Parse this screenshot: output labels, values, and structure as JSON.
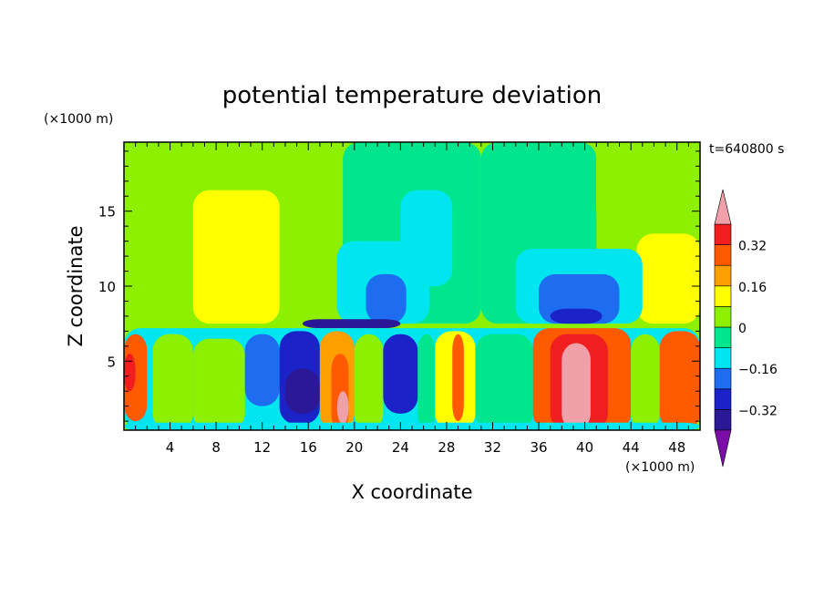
{
  "chart_data": {
    "type": "heatmap",
    "title": "potential temperature deviation",
    "xlabel": "X coordinate",
    "ylabel": "Z coordinate",
    "x_unit_label": "(×1000 m)",
    "y_unit_label": "(×1000 m)",
    "time_label": "t=640800 s",
    "xlim": [
      0,
      50
    ],
    "ylim": [
      0.4,
      19.6
    ],
    "x_ticks": [
      4,
      8,
      12,
      16,
      20,
      24,
      28,
      32,
      36,
      40,
      44,
      48
    ],
    "x_tick_labels": [
      "4",
      "8",
      "12",
      "16",
      "20",
      "24",
      "28",
      "32",
      "36",
      "40",
      "44",
      "48"
    ],
    "y_ticks": [
      5,
      10,
      15
    ],
    "y_tick_labels": [
      "5",
      "10",
      "15"
    ],
    "colorbar": {
      "levels": [
        -0.4,
        -0.32,
        -0.24,
        -0.16,
        -0.08,
        0,
        0.08,
        0.16,
        0.24,
        0.32,
        0.4
      ],
      "tick_labels": [
        "0.32",
        "0.16",
        "0",
        "−0.16",
        "−0.32"
      ],
      "tick_values": [
        0.32,
        0.16,
        0,
        -0.16,
        -0.32
      ],
      "colors": [
        "#7b0ea8",
        "#2a1896",
        "#1a22c8",
        "#1e6cf0",
        "#00e6f0",
        "#00e68c",
        "#8cf000",
        "#ffff00",
        "#ffa000",
        "#ff5a00",
        "#f01e1e",
        "#f0a0a8"
      ]
    },
    "regions": [
      {
        "x": [
          0,
          10.5
        ],
        "y": [
          8,
          19.6
        ],
        "level": 0.04
      },
      {
        "x": [
          14,
          20
        ],
        "y": [
          15.5,
          19.6
        ],
        "level": 0.04
      },
      {
        "x": [
          19,
          31
        ],
        "y": [
          7.5,
          19.6
        ],
        "level": -0.04
      },
      {
        "x": [
          31,
          41
        ],
        "y": [
          7.5,
          19.6
        ],
        "level": -0.04
      },
      {
        "x": [
          41,
          50
        ],
        "y": [
          14,
          19.6
        ],
        "level": 0.04
      },
      {
        "x": [
          6,
          13.5
        ],
        "y": [
          7.5,
          16.4
        ],
        "level": 0.12
      },
      {
        "x": [
          44.5,
          50
        ],
        "y": [
          7.5,
          13.5
        ],
        "level": 0.12
      },
      {
        "x": [
          24,
          28.5
        ],
        "y": [
          10,
          16.4
        ],
        "level": -0.12
      },
      {
        "x": [
          18.5,
          26.5
        ],
        "y": [
          7.5,
          13
        ],
        "level": -0.12
      },
      {
        "x": [
          34,
          45
        ],
        "y": [
          7.5,
          12.5
        ],
        "level": -0.12
      },
      {
        "x": [
          21,
          24.5
        ],
        "y": [
          7.5,
          10.8
        ],
        "level": -0.2
      },
      {
        "x": [
          36,
          43
        ],
        "y": [
          7.5,
          10.8
        ],
        "level": -0.2
      },
      {
        "x": [
          15.5,
          24
        ],
        "y": [
          7.2,
          7.8
        ],
        "level": -0.36
      },
      {
        "x": [
          37,
          41.5
        ],
        "y": [
          7.5,
          8.5
        ],
        "level": -0.28
      },
      {
        "x": [
          0,
          50
        ],
        "y": [
          0.4,
          7.2
        ],
        "level": -0.12
      },
      {
        "x": [
          0,
          2
        ],
        "y": [
          1,
          6.8
        ],
        "level": 0.24
      },
      {
        "x": [
          0,
          1
        ],
        "y": [
          3,
          5.5
        ],
        "level": 0.32
      },
      {
        "x": [
          2.5,
          6
        ],
        "y": [
          0.4,
          6.8
        ],
        "level": 0.04
      },
      {
        "x": [
          6,
          10.5
        ],
        "y": [
          0.4,
          6.5
        ],
        "level": 0.04
      },
      {
        "x": [
          10.5,
          13.5
        ],
        "y": [
          2,
          6.8
        ],
        "level": -0.2
      },
      {
        "x": [
          13.5,
          17
        ],
        "y": [
          0.8,
          7
        ],
        "level": -0.28
      },
      {
        "x": [
          14,
          17
        ],
        "y": [
          1.5,
          4.5
        ],
        "level": -0.36
      },
      {
        "x": [
          17,
          20
        ],
        "y": [
          0.4,
          7
        ],
        "level": 0.2
      },
      {
        "x": [
          18,
          19.5
        ],
        "y": [
          0.4,
          5.5
        ],
        "level": 0.28
      },
      {
        "x": [
          18.5,
          19.5
        ],
        "y": [
          0.8,
          3
        ],
        "level": 0.4
      },
      {
        "x": [
          20,
          22.5
        ],
        "y": [
          0.4,
          6.8
        ],
        "level": 0.04
      },
      {
        "x": [
          22.5,
          25.5
        ],
        "y": [
          1.5,
          6.8
        ],
        "level": -0.28
      },
      {
        "x": [
          25.5,
          27
        ],
        "y": [
          0.4,
          6.8
        ],
        "level": -0.04
      },
      {
        "x": [
          27,
          30.5
        ],
        "y": [
          0.4,
          7
        ],
        "level": 0.12
      },
      {
        "x": [
          28.5,
          29.5
        ],
        "y": [
          1,
          6.8
        ],
        "level": 0.28
      },
      {
        "x": [
          30.5,
          35.5
        ],
        "y": [
          0.4,
          6.8
        ],
        "level": -0.04
      },
      {
        "x": [
          35.5,
          44
        ],
        "y": [
          0.4,
          7.2
        ],
        "level": 0.24
      },
      {
        "x": [
          37,
          42
        ],
        "y": [
          0.4,
          6.8
        ],
        "level": 0.32
      },
      {
        "x": [
          38,
          40.5
        ],
        "y": [
          0.4,
          6.2
        ],
        "level": 0.4
      },
      {
        "x": [
          44,
          46.5
        ],
        "y": [
          0.4,
          6.8
        ],
        "level": 0.04
      },
      {
        "x": [
          46.5,
          50
        ],
        "y": [
          0.4,
          7
        ],
        "level": 0.24
      },
      {
        "x": [
          47.5,
          50
        ],
        "y": [
          2,
          6
        ],
        "level": 0.28
      },
      {
        "x": [
          0,
          50
        ],
        "y": [
          0.4,
          0.9
        ],
        "level": -0.16
      }
    ]
  }
}
